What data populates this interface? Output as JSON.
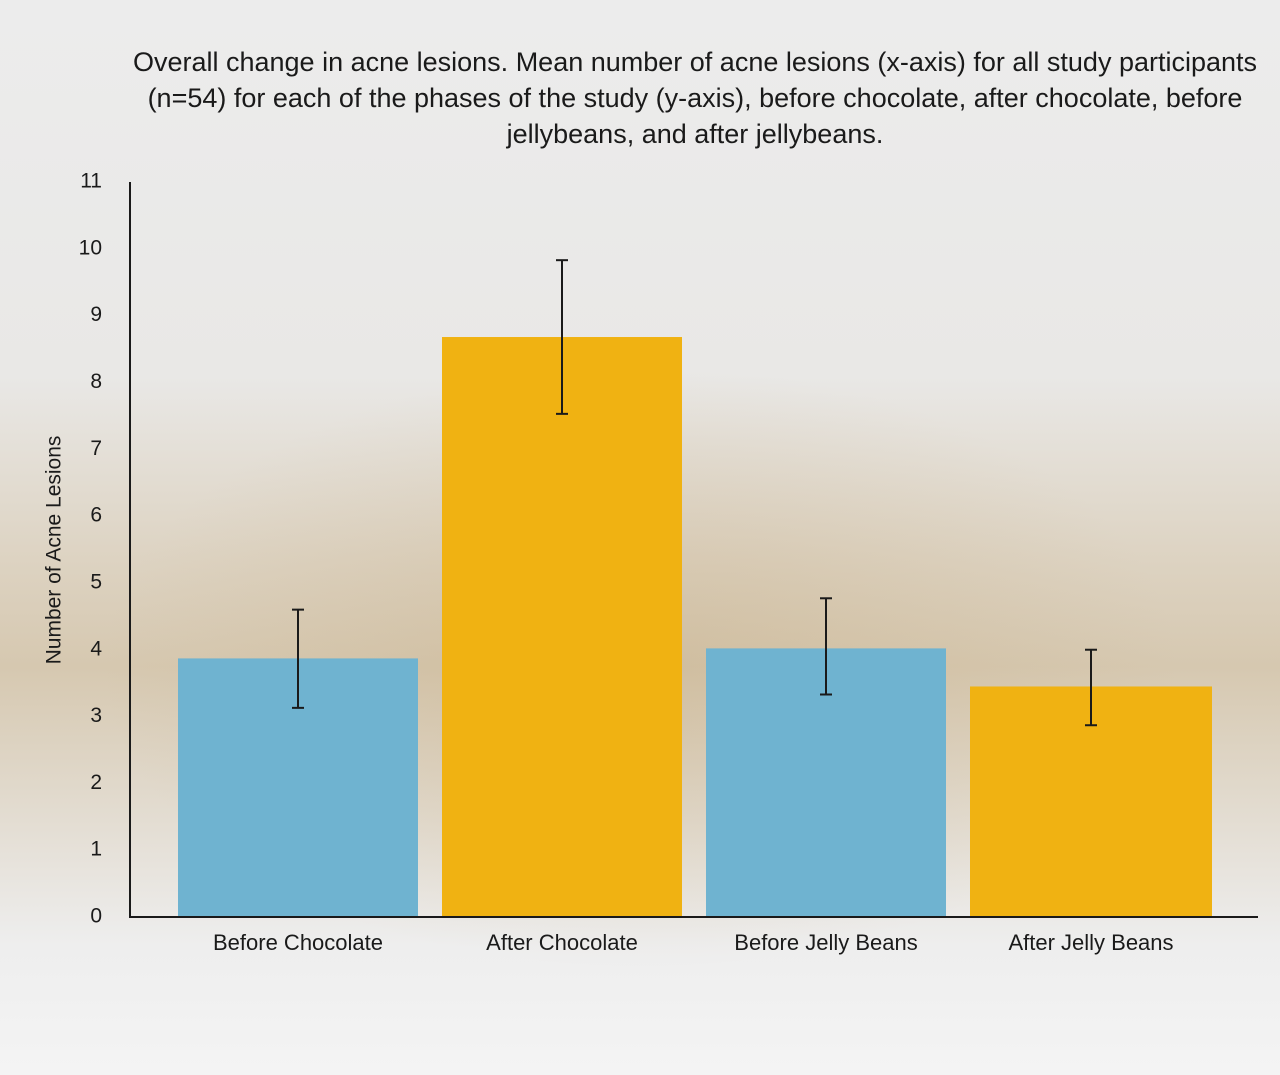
{
  "caption": "Overall change in acne lesions. Mean number of acne lesions (x-axis) for all study participants (n=54) for each of the phases of the study (y-axis), before chocolate, after chocolate, before jellybeans, and after jellybeans.",
  "chart_data": {
    "type": "bar",
    "title": "",
    "xlabel": "",
    "ylabel": "Number of Acne Lesions",
    "ylim": [
      0,
      11
    ],
    "yticks": [
      "0",
      "1",
      "2",
      "3",
      "4",
      "5",
      "6",
      "7",
      "8",
      "9",
      "10",
      "11"
    ],
    "categories": [
      "Before Chocolate",
      "After Chocolate",
      "Before Jelly Beans",
      "After Jelly Beans"
    ],
    "values": [
      3.87,
      8.68,
      4.02,
      3.45
    ],
    "error_low": [
      3.13,
      7.53,
      3.33,
      2.87
    ],
    "error_high": [
      4.6,
      9.83,
      4.77,
      4.0
    ],
    "colors": [
      "#6fb3d0",
      "#f0b212",
      "#6fb3d0",
      "#f0b212"
    ],
    "grid": false,
    "legend": "none"
  }
}
